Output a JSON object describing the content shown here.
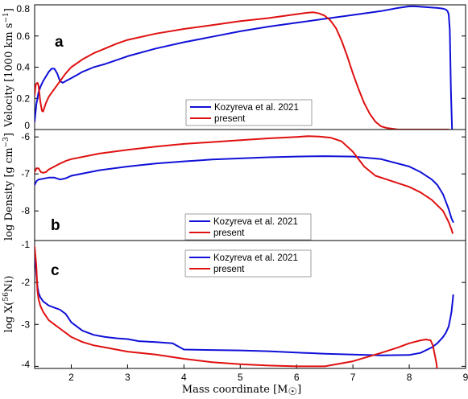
{
  "colors": {
    "kozyreva": "#1010d8",
    "present": "#e01010",
    "axes": "#000000",
    "legend_border": "#888888"
  },
  "chart_data": [
    {
      "type": "line",
      "panel_label": "a",
      "ylabel_main": "Velocity [1000 km s",
      "ylabel_sup": "−1",
      "ylabel_end": "]",
      "xlim": [
        1.35,
        9
      ],
      "ylim": [
        0,
        0.8
      ],
      "yticks": [
        0,
        0.2,
        0.4,
        0.6,
        0.8
      ],
      "ytick_labels": [
        "0",
        "0.2",
        "0.4",
        "0.6",
        "0.8"
      ],
      "legend": [
        "Kozyreva et al. 2021",
        "present"
      ],
      "series": [
        {
          "name": "Kozyreva et al. 2021",
          "x": [
            1.35,
            1.38,
            1.42,
            1.46,
            1.5,
            1.55,
            1.6,
            1.65,
            1.7,
            1.75,
            1.8,
            1.85,
            1.9,
            2.0,
            2.1,
            2.2,
            2.4,
            2.6,
            2.8,
            3.0,
            3.5,
            4.0,
            4.5,
            5.0,
            5.5,
            6.0,
            6.5,
            7.0,
            7.5,
            7.8,
            8.0,
            8.1,
            8.3,
            8.5,
            8.6,
            8.65,
            8.68,
            8.7,
            8.72,
            8.74,
            8.76
          ],
          "y": [
            0.05,
            0.16,
            0.24,
            0.28,
            0.31,
            0.34,
            0.37,
            0.39,
            0.39,
            0.36,
            0.31,
            0.3,
            0.31,
            0.33,
            0.35,
            0.37,
            0.4,
            0.42,
            0.445,
            0.47,
            0.52,
            0.56,
            0.595,
            0.63,
            0.66,
            0.685,
            0.71,
            0.735,
            0.76,
            0.78,
            0.79,
            0.79,
            0.785,
            0.78,
            0.775,
            0.77,
            0.76,
            0.74,
            0.64,
            0.25,
            0.0
          ]
        },
        {
          "name": "present",
          "x": [
            1.35,
            1.37,
            1.4,
            1.42,
            1.45,
            1.48,
            1.5,
            1.55,
            1.6,
            1.7,
            1.8,
            1.9,
            2.0,
            2.2,
            2.4,
            2.6,
            2.8,
            3.0,
            3.5,
            4.0,
            4.5,
            5.0,
            5.5,
            6.0,
            6.2,
            6.3,
            6.4,
            6.5,
            6.6,
            6.7,
            6.8,
            6.9,
            7.0,
            7.1,
            7.2,
            7.3,
            7.4,
            7.5,
            7.6,
            7.7,
            7.8,
            8.0,
            8.5,
            8.7
          ],
          "y": [
            0.22,
            0.29,
            0.3,
            0.28,
            0.18,
            0.12,
            0.115,
            0.17,
            0.21,
            0.26,
            0.31,
            0.36,
            0.4,
            0.45,
            0.49,
            0.52,
            0.55,
            0.575,
            0.615,
            0.645,
            0.67,
            0.695,
            0.715,
            0.74,
            0.75,
            0.752,
            0.745,
            0.73,
            0.7,
            0.65,
            0.57,
            0.47,
            0.36,
            0.26,
            0.17,
            0.1,
            0.05,
            0.02,
            0.01,
            0.005,
            0.0,
            0.0,
            0.0,
            0.0
          ]
        }
      ]
    },
    {
      "type": "line",
      "panel_label": "b",
      "ylabel_main": "log Density [g cm",
      "ylabel_sup": "−3",
      "ylabel_end": "]",
      "xlim": [
        1.35,
        9
      ],
      "ylim": [
        -8.8,
        -5.8
      ],
      "yticks": [
        -8,
        -7,
        -6
      ],
      "ytick_labels": [
        "-8",
        "-7",
        "-6"
      ],
      "legend": [
        "Kozyreva et al. 2021",
        "present"
      ],
      "series": [
        {
          "name": "Kozyreva et al. 2021",
          "x": [
            1.35,
            1.38,
            1.42,
            1.5,
            1.6,
            1.7,
            1.8,
            1.9,
            2.0,
            2.5,
            3.0,
            3.5,
            4.0,
            4.5,
            5.0,
            5.5,
            6.0,
            6.5,
            7.0,
            7.5,
            8.0,
            8.2,
            8.4,
            8.5,
            8.6,
            8.65,
            8.7,
            8.75,
            8.78
          ],
          "y": [
            -7.3,
            -7.2,
            -7.15,
            -7.13,
            -7.1,
            -7.1,
            -7.15,
            -7.12,
            -7.05,
            -6.9,
            -6.8,
            -6.72,
            -6.66,
            -6.61,
            -6.58,
            -6.55,
            -6.53,
            -6.52,
            -6.53,
            -6.6,
            -6.8,
            -6.95,
            -7.15,
            -7.3,
            -7.55,
            -7.75,
            -7.95,
            -8.2,
            -8.3
          ]
        },
        {
          "name": "present",
          "x": [
            1.35,
            1.38,
            1.42,
            1.46,
            1.5,
            1.55,
            1.6,
            1.7,
            1.8,
            1.9,
            2.0,
            2.5,
            3.0,
            3.5,
            4.0,
            4.5,
            5.0,
            5.5,
            6.0,
            6.2,
            6.4,
            6.6,
            6.8,
            7.0,
            7.2,
            7.4,
            7.6,
            7.8,
            8.0,
            8.2,
            8.4,
            8.5,
            8.6,
            8.65,
            8.7,
            8.75,
            8.77
          ],
          "y": [
            -6.95,
            -6.85,
            -6.85,
            -6.95,
            -6.97,
            -6.95,
            -6.88,
            -6.8,
            -6.72,
            -6.65,
            -6.6,
            -6.45,
            -6.35,
            -6.26,
            -6.19,
            -6.14,
            -6.09,
            -6.04,
            -6.0,
            -5.98,
            -5.99,
            -6.02,
            -6.12,
            -6.4,
            -6.8,
            -7.05,
            -7.15,
            -7.25,
            -7.35,
            -7.5,
            -7.7,
            -7.85,
            -8.0,
            -8.15,
            -8.3,
            -8.5,
            -8.6
          ]
        }
      ]
    },
    {
      "type": "line",
      "panel_label": "c",
      "ylabel_main": "log X(",
      "ylabel_sup": "56",
      "ylabel_end": "Ni)",
      "xlim": [
        1.35,
        9
      ],
      "ylim": [
        -4.05,
        -1
      ],
      "yticks": [
        -4,
        -3,
        -2,
        -1
      ],
      "ytick_labels": [
        "-4",
        "-3",
        "-2",
        "-1"
      ],
      "xticks": [
        2,
        3,
        4,
        5,
        6,
        7,
        8,
        9
      ],
      "xtick_labels": [
        "2",
        "3",
        "4",
        "5",
        "6",
        "7",
        "8",
        "9"
      ],
      "xlabel_main": "Mass coordinate [M",
      "xlabel_end": "]",
      "legend": [
        "Kozyreva et al. 2021",
        "present"
      ],
      "series": [
        {
          "name": "Kozyreva et al. 2021",
          "x": [
            1.35,
            1.38,
            1.4,
            1.42,
            1.45,
            1.5,
            1.55,
            1.6,
            1.7,
            1.8,
            1.9,
            2.0,
            2.2,
            2.4,
            2.6,
            2.8,
            3.0,
            3.2,
            3.5,
            3.8,
            4.0,
            4.5,
            5.0,
            5.5,
            6.0,
            6.5,
            7.0,
            7.5,
            8.0,
            8.2,
            8.4,
            8.5,
            8.6,
            8.65,
            8.7,
            8.73,
            8.75,
            8.77,
            8.78
          ],
          "y": [
            -1.2,
            -1.8,
            -2.1,
            -2.25,
            -2.35,
            -2.45,
            -2.5,
            -2.55,
            -2.6,
            -2.65,
            -2.75,
            -2.95,
            -3.15,
            -3.25,
            -3.3,
            -3.33,
            -3.35,
            -3.4,
            -3.42,
            -3.45,
            -3.6,
            -3.61,
            -3.62,
            -3.64,
            -3.67,
            -3.7,
            -3.72,
            -3.74,
            -3.73,
            -3.68,
            -3.55,
            -3.45,
            -3.3,
            -3.2,
            -3.05,
            -2.85,
            -2.7,
            -2.45,
            -2.3
          ]
        },
        {
          "name": "present",
          "x": [
            1.35,
            1.38,
            1.4,
            1.42,
            1.45,
            1.5,
            1.55,
            1.6,
            1.7,
            1.8,
            1.9,
            2.0,
            2.2,
            2.4,
            2.6,
            2.8,
            3.0,
            3.5,
            4.0,
            4.5,
            5.0,
            5.5,
            6.0,
            6.5,
            7.0,
            7.5,
            7.8,
            8.0,
            8.2,
            8.3,
            8.38,
            8.42,
            8.45,
            8.48,
            8.5
          ],
          "y": [
            -1.15,
            -1.6,
            -2.2,
            -2.4,
            -2.55,
            -2.7,
            -2.8,
            -2.9,
            -3.0,
            -3.1,
            -3.2,
            -3.3,
            -3.42,
            -3.5,
            -3.55,
            -3.6,
            -3.65,
            -3.72,
            -3.82,
            -3.9,
            -3.95,
            -3.98,
            -4.0,
            -4.0,
            -3.88,
            -3.68,
            -3.55,
            -3.45,
            -3.38,
            -3.36,
            -3.38,
            -3.5,
            -3.7,
            -3.9,
            -4.1
          ]
        }
      ]
    }
  ]
}
